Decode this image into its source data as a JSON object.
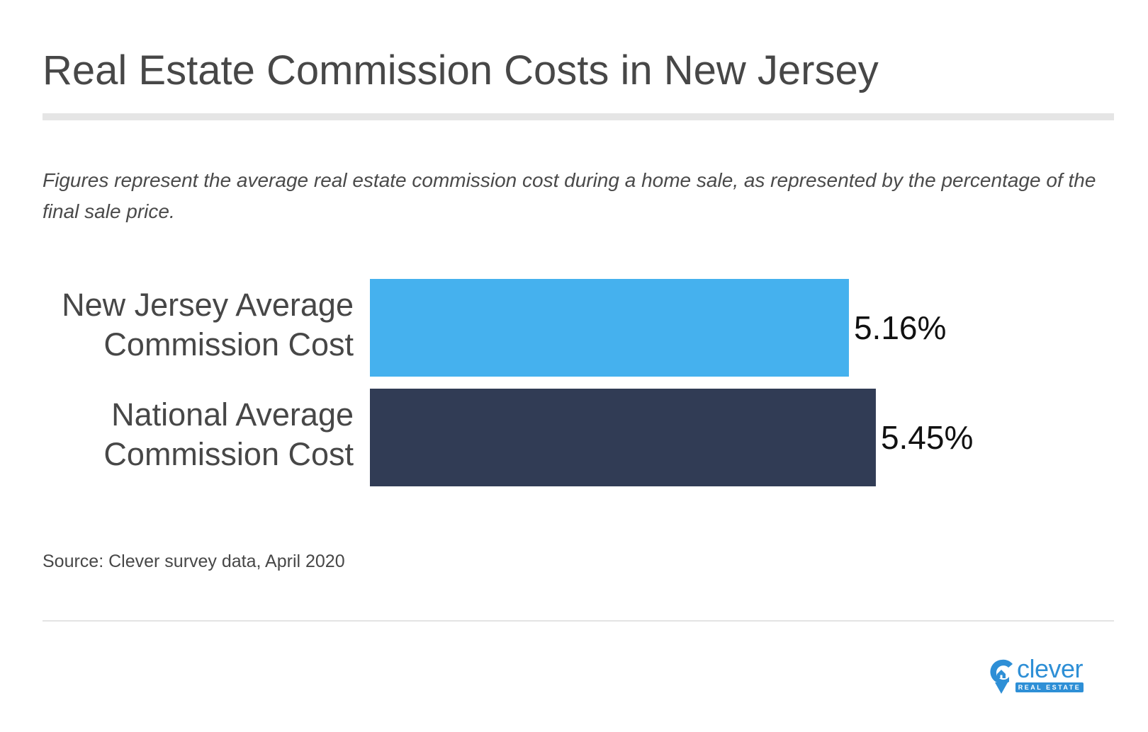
{
  "title": "Real Estate Commission Costs in New Jersey",
  "subtitle": "Figures represent the average real estate commission cost during a home sale, as represented by the percentage of the final sale price.",
  "source": "Source: Clever survey data, April 2020",
  "logo": {
    "word": "clever",
    "sub": "REAL ESTATE",
    "icon": "house-pin-icon",
    "color": "#2e8fd6"
  },
  "chart_data": {
    "type": "bar",
    "orientation": "horizontal",
    "categories": [
      [
        "New Jersey Average",
        "Commission Cost"
      ],
      [
        "National Average",
        "Commission Cost"
      ]
    ],
    "values": [
      5.16,
      5.45
    ],
    "value_labels": [
      "5.16%",
      "5.45%"
    ],
    "colors": [
      "#45b1ee",
      "#313c55"
    ],
    "xlim": [
      0,
      6.0
    ],
    "grid": false,
    "title": "",
    "xlabel": "",
    "ylabel": ""
  }
}
